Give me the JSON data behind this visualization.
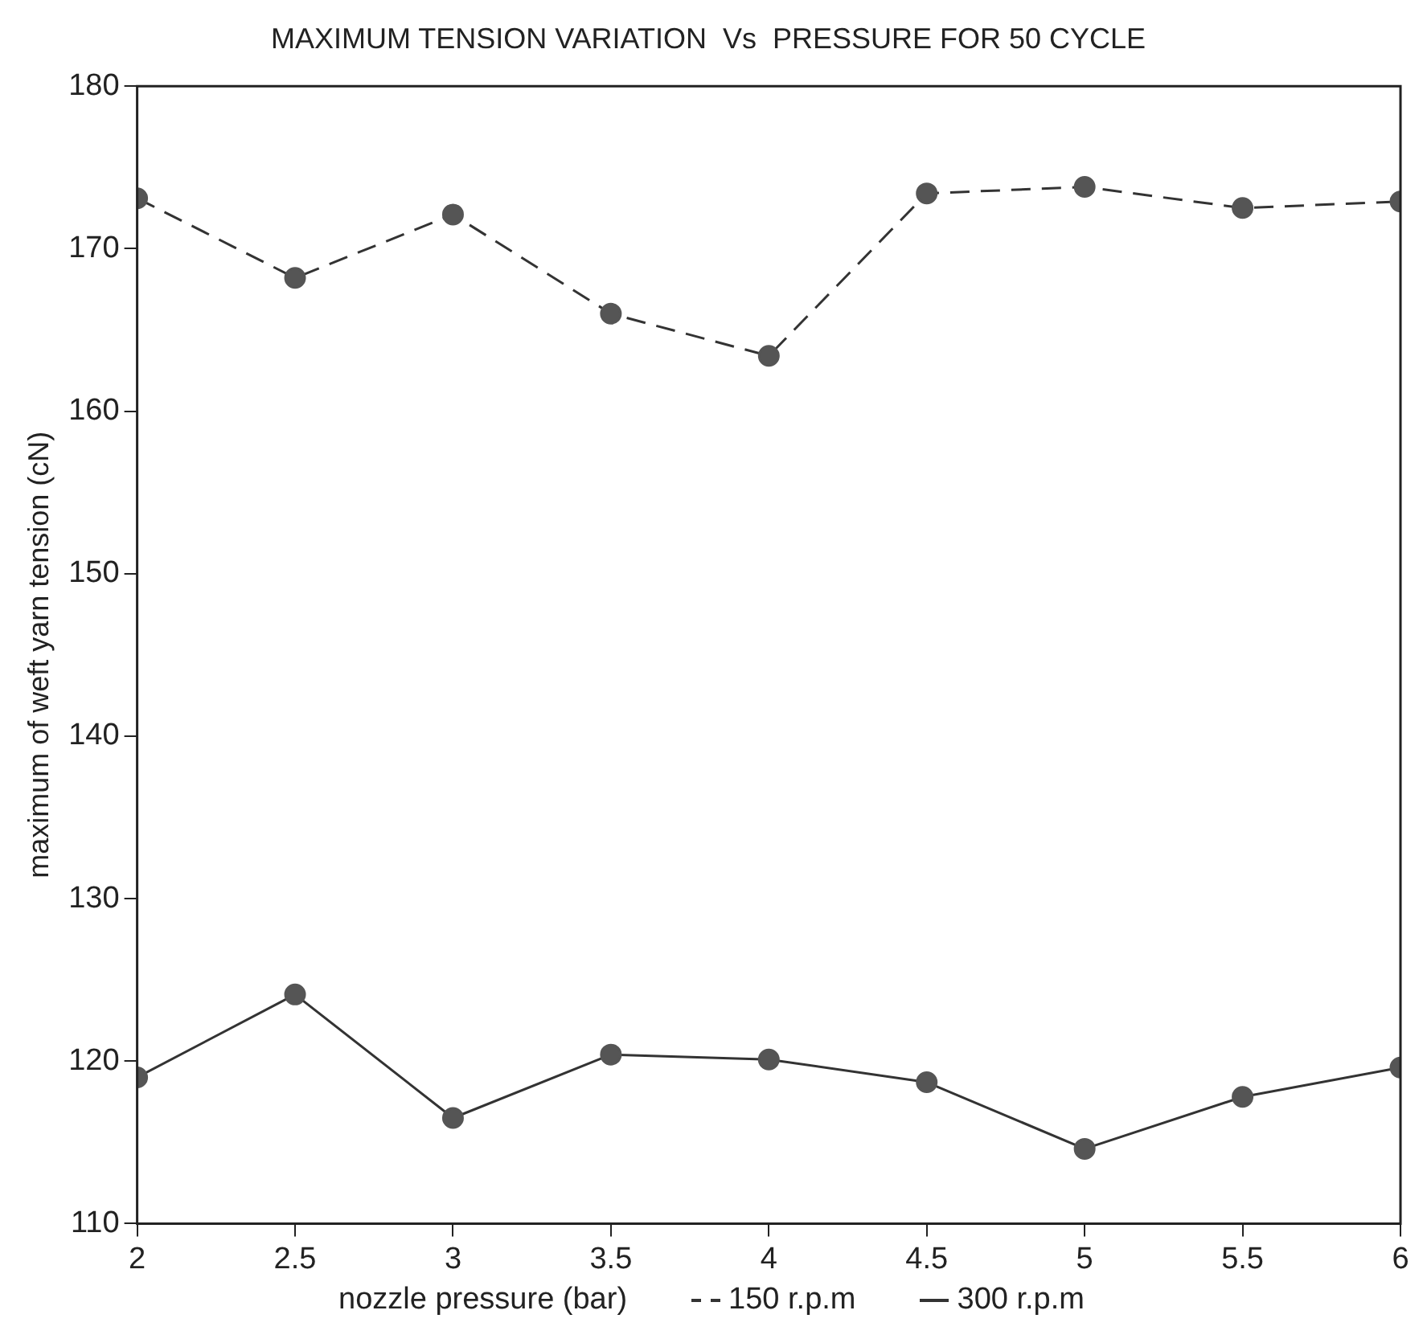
{
  "chart_data": {
    "type": "line",
    "title": "MAXIMUM TENSION VARIATION  Vs  PRESSURE FOR 50 CYCLE",
    "xlabel": "nozzle pressure (bar)",
    "ylabel": "maximum of weft yarn tension (cN)",
    "x": [
      2,
      2.5,
      3,
      3.5,
      4,
      4.5,
      5,
      5.5,
      6
    ],
    "series": [
      {
        "name": "150 r.p.m",
        "color": "#333333",
        "line_style": "dashed",
        "values": [
          173.1,
          168.2,
          172.1,
          166.0,
          163.4,
          173.4,
          173.8,
          172.5,
          172.9
        ]
      },
      {
        "name": "300 r.p.m",
        "color": "#333333",
        "line_style": "solid",
        "values": [
          119.0,
          124.1,
          116.5,
          120.4,
          120.1,
          118.7,
          114.6,
          117.8,
          119.6
        ]
      }
    ],
    "xlim": [
      2,
      6
    ],
    "xticks": [
      2,
      2.5,
      3,
      3.5,
      4,
      4.5,
      5,
      5.5,
      6
    ],
    "ylim": [
      110,
      180
    ],
    "yticks": [
      110,
      120,
      130,
      140,
      150,
      160,
      170,
      180
    ],
    "grid": false,
    "legend": "bottom",
    "marker": "circle"
  }
}
